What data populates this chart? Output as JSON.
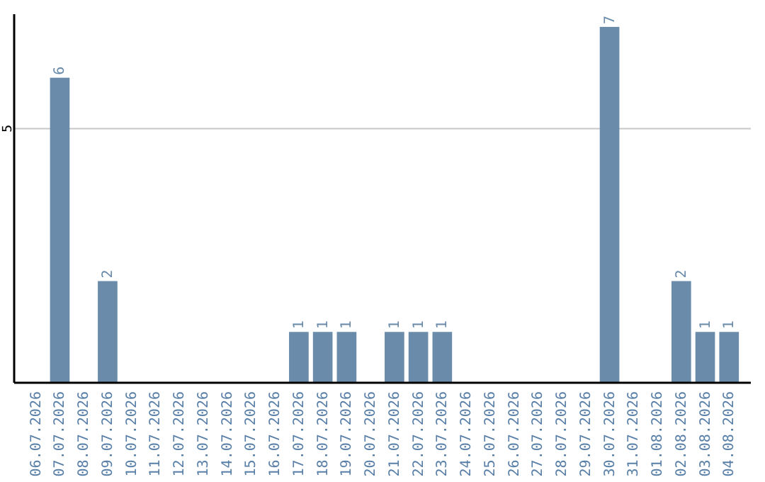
{
  "chart_data": {
    "type": "bar",
    "categories": [
      "06.07.2026",
      "07.07.2026",
      "08.07.2026",
      "09.07.2026",
      "10.07.2026",
      "11.07.2026",
      "12.07.2026",
      "13.07.2026",
      "14.07.2026",
      "15.07.2026",
      "16.07.2026",
      "17.07.2026",
      "18.07.2026",
      "19.07.2026",
      "20.07.2026",
      "21.07.2026",
      "22.07.2026",
      "23.07.2026",
      "24.07.2026",
      "25.07.2026",
      "26.07.2026",
      "27.07.2026",
      "28.07.2026",
      "29.07.2026",
      "30.07.2026",
      "31.07.2026",
      "01.08.2026",
      "02.08.2026",
      "03.08.2026",
      "04.08.2026"
    ],
    "values": [
      0,
      6,
      0,
      2,
      0,
      0,
      0,
      0,
      0,
      0,
      0,
      1,
      1,
      1,
      0,
      1,
      1,
      1,
      0,
      0,
      0,
      0,
      0,
      0,
      7,
      0,
      0,
      2,
      1,
      1
    ],
    "value_labels": [
      null,
      "6",
      null,
      "2",
      null,
      null,
      null,
      null,
      null,
      null,
      null,
      "1",
      "1",
      "1",
      null,
      "1",
      "1",
      "1",
      null,
      null,
      null,
      null,
      null,
      null,
      "7",
      null,
      null,
      "2",
      "1",
      "1"
    ],
    "color": "#6a8caa",
    "ylim": [
      0,
      7.25
    ],
    "yticks": [
      5
    ],
    "grid": "y"
  }
}
